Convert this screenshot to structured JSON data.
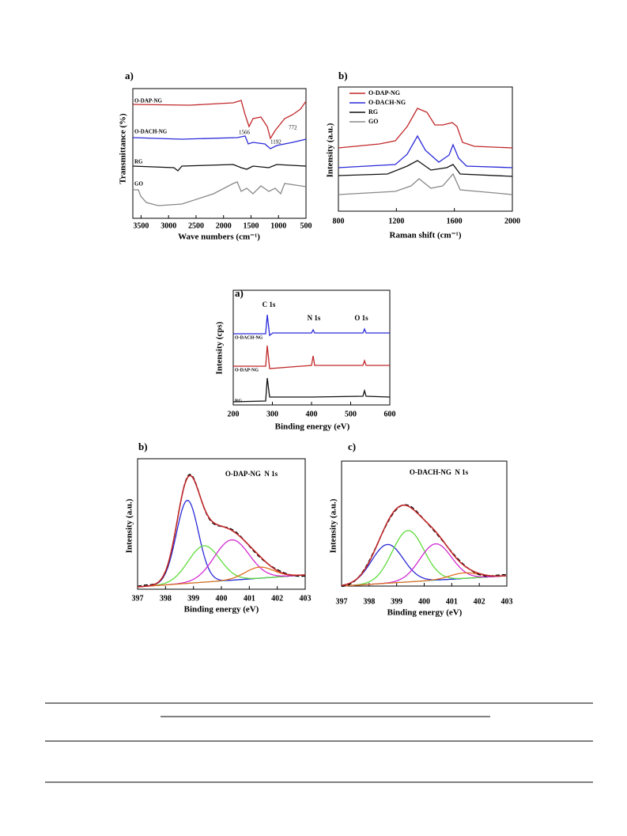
{
  "figure1": [
    {
      "label": "a)",
      "y_label": "Transmittance (%)",
      "x_label": "Wave numbers (cm⁻¹)",
      "xlim": [
        3650,
        500
      ],
      "xticks": [
        3500,
        3000,
        2500,
        2000,
        1500,
        1000,
        500
      ],
      "series_labels": [
        "O-DAP-NG",
        "O-DACH-NG",
        "RG",
        "GO"
      ],
      "annotations": [
        "1566",
        "1192",
        "772"
      ]
    },
    {
      "label": "b)",
      "y_label": "Intensity (a.u.)",
      "x_label": "Raman shift (cm⁻¹)",
      "xlim": [
        800,
        2000
      ],
      "xticks": [
        800,
        1200,
        1600,
        2000
      ],
      "legend": [
        "O-DAP-NG",
        "O-DACH-NG",
        "RG",
        "GO"
      ]
    }
  ],
  "figure2": [
    {
      "label": "a)",
      "y_label": "Intensity (cps)",
      "x_label": "Binding energy (eV)",
      "xlim": [
        200,
        600
      ],
      "xticks": [
        200,
        300,
        400,
        500,
        600
      ],
      "peak_labels": [
        "C 1s",
        "N 1s",
        "O 1s"
      ],
      "series_labels": [
        "O-DACH-NG",
        "O-DAP-NG",
        "RG"
      ]
    },
    {
      "label": "b)",
      "y_label": "Intensity (a.u.)",
      "x_label": "Binding energy (eV)",
      "xlim": [
        397,
        403
      ],
      "xticks": [
        397,
        398,
        399,
        400,
        401,
        402,
        403
      ],
      "title": "O-DAP-NG  N 1s"
    },
    {
      "label": "c)",
      "y_label": "Intensity (a.u.)",
      "x_label": "Binding energy (eV)",
      "xlim": [
        397,
        403
      ],
      "xticks": [
        397,
        398,
        399,
        400,
        401,
        402,
        403
      ],
      "title": "O-DACH-NG  N 1s"
    }
  ]
}
